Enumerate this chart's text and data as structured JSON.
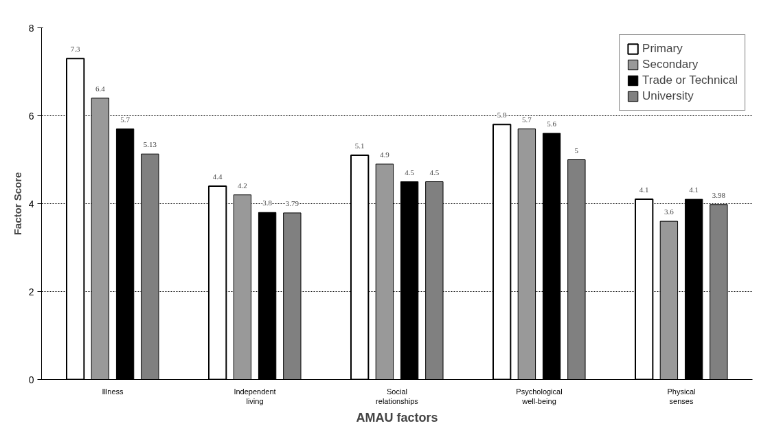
{
  "chart_data": {
    "type": "bar",
    "xlabel": "AMAU factors",
    "ylabel": "Factor Score",
    "categories": [
      "Illness",
      "Independent\nliving",
      "Social\nrelationships",
      "Psychological\nwell-being",
      "Physical\nsenses"
    ],
    "series": [
      {
        "name": "Primary",
        "color": "#ffffff",
        "values": [
          7.3,
          4.4,
          5.1,
          5.8,
          4.1
        ]
      },
      {
        "name": "Secondary",
        "color": "#999999",
        "values": [
          6.4,
          4.2,
          4.9,
          5.7,
          3.6
        ]
      },
      {
        "name": "Trade or Technical",
        "color": "#000000",
        "values": [
          5.7,
          3.8,
          4.5,
          5.6,
          4.1
        ]
      },
      {
        "name": "University",
        "color": "#808080",
        "values": [
          5.13,
          3.79,
          4.5,
          5,
          3.98
        ]
      }
    ],
    "ylim": [
      0,
      8
    ],
    "yticks": [
      0,
      2,
      4,
      6,
      8
    ],
    "grid": "y",
    "legend": "top right",
    "data_labels": true
  }
}
